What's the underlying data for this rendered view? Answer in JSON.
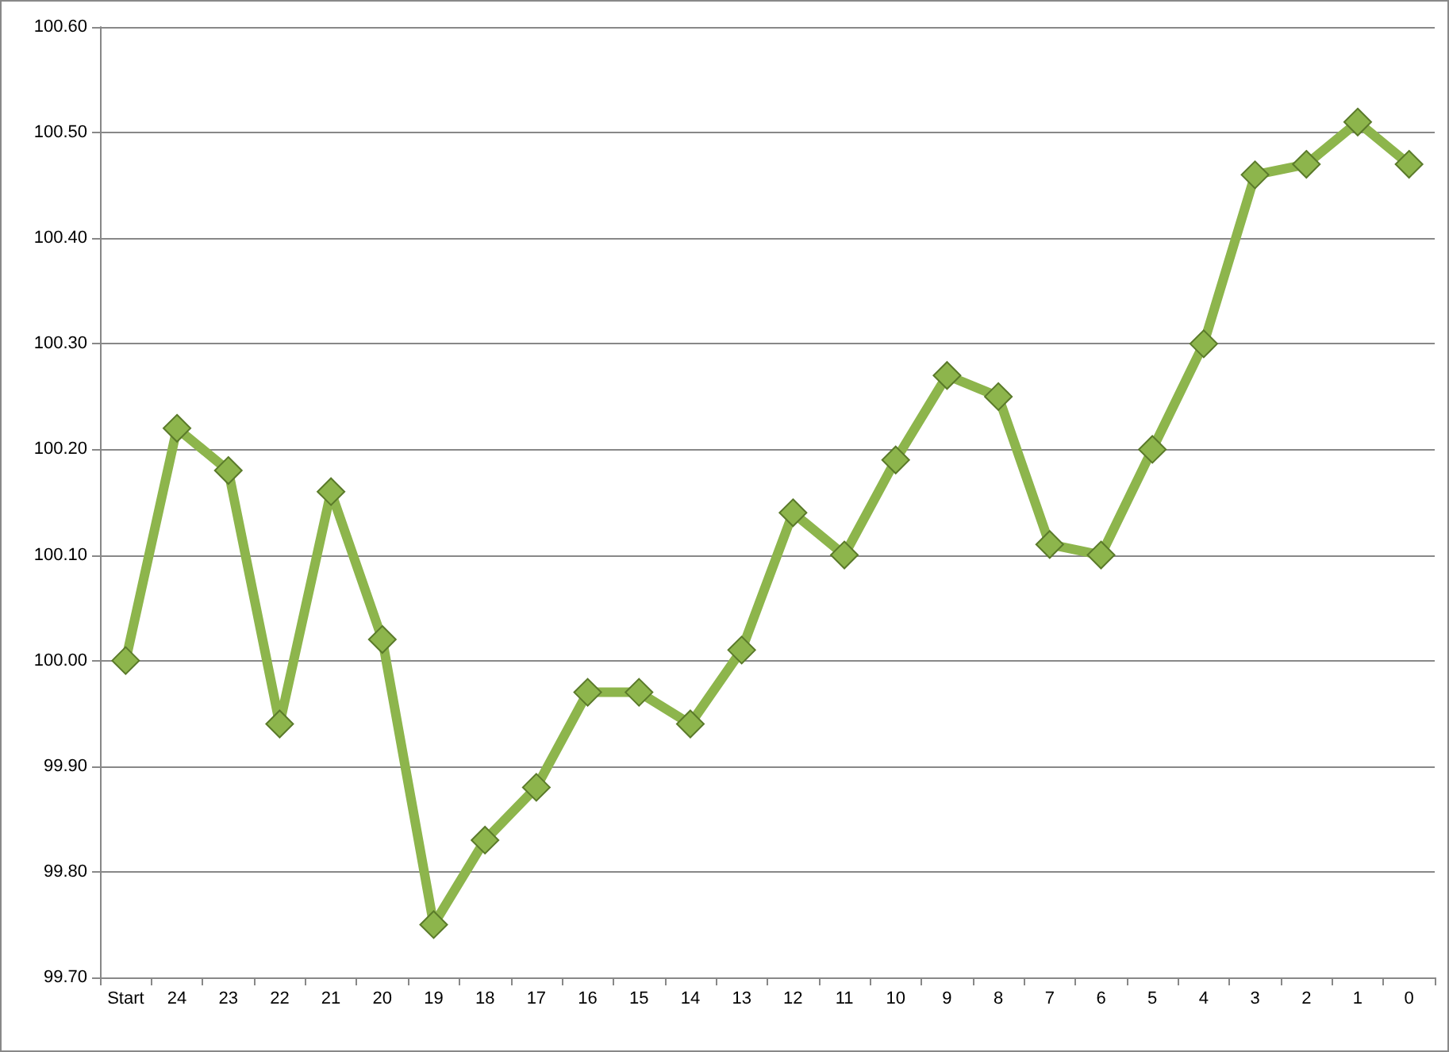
{
  "chart_data": {
    "type": "line",
    "categories": [
      "Start",
      "24",
      "23",
      "22",
      "21",
      "20",
      "19",
      "18",
      "17",
      "16",
      "15",
      "14",
      "13",
      "12",
      "11",
      "10",
      "9",
      "8",
      "7",
      "6",
      "5",
      "4",
      "3",
      "2",
      "1",
      "0"
    ],
    "series": [
      {
        "color": "#8db54c",
        "values": [
          100.0,
          100.22,
          100.18,
          99.94,
          100.16,
          100.02,
          99.75,
          99.83,
          99.88,
          99.97,
          99.97,
          99.94,
          100.01,
          100.14,
          100.1,
          100.19,
          100.27,
          100.25,
          100.11,
          100.1,
          100.2,
          100.3,
          100.46,
          100.47,
          100.51,
          100.47
        ]
      }
    ],
    "ylim": [
      99.7,
      100.6
    ],
    "yticks": [
      {
        "value": 99.7,
        "label": "99.70"
      },
      {
        "value": 99.8,
        "label": "99.80"
      },
      {
        "value": 99.9,
        "label": "99.90"
      },
      {
        "value": 100.0,
        "label": "100.00"
      },
      {
        "value": 100.1,
        "label": "100.10"
      },
      {
        "value": 100.2,
        "label": "100.20"
      },
      {
        "value": 100.3,
        "label": "100.30"
      },
      {
        "value": 100.4,
        "label": "100.40"
      },
      {
        "value": 100.5,
        "label": "100.50"
      },
      {
        "value": 100.6,
        "label": "100.60"
      }
    ],
    "grid": "y",
    "marker": "diamond",
    "line_style": "solid"
  }
}
